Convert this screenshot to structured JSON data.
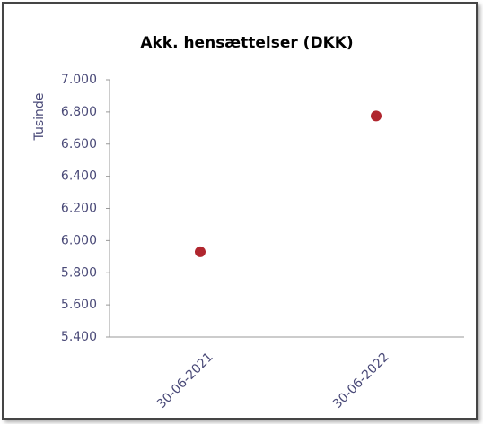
{
  "chart_data": {
    "type": "line",
    "title": "Akk. hensættelser (DKK)",
    "y_label": "Tusinde",
    "categories": [
      "30-06-2021",
      "30-06-2022"
    ],
    "series": [
      {
        "name": "Akk. hensættelser",
        "color": "#b0262e",
        "values": [
          5930,
          6775
        ]
      }
    ],
    "ylim": [
      5400,
      7000
    ],
    "yticks": [
      {
        "value": 5400,
        "label": "5.400"
      },
      {
        "value": 5600,
        "label": "5.600"
      },
      {
        "value": 5800,
        "label": "5.800"
      },
      {
        "value": 6000,
        "label": "6.000"
      },
      {
        "value": 6200,
        "label": "6.200"
      },
      {
        "value": 6400,
        "label": "6.400"
      },
      {
        "value": 6600,
        "label": "6.600"
      },
      {
        "value": 6800,
        "label": "6.800"
      },
      {
        "value": 7000,
        "label": "7.000"
      }
    ],
    "grid": false
  }
}
